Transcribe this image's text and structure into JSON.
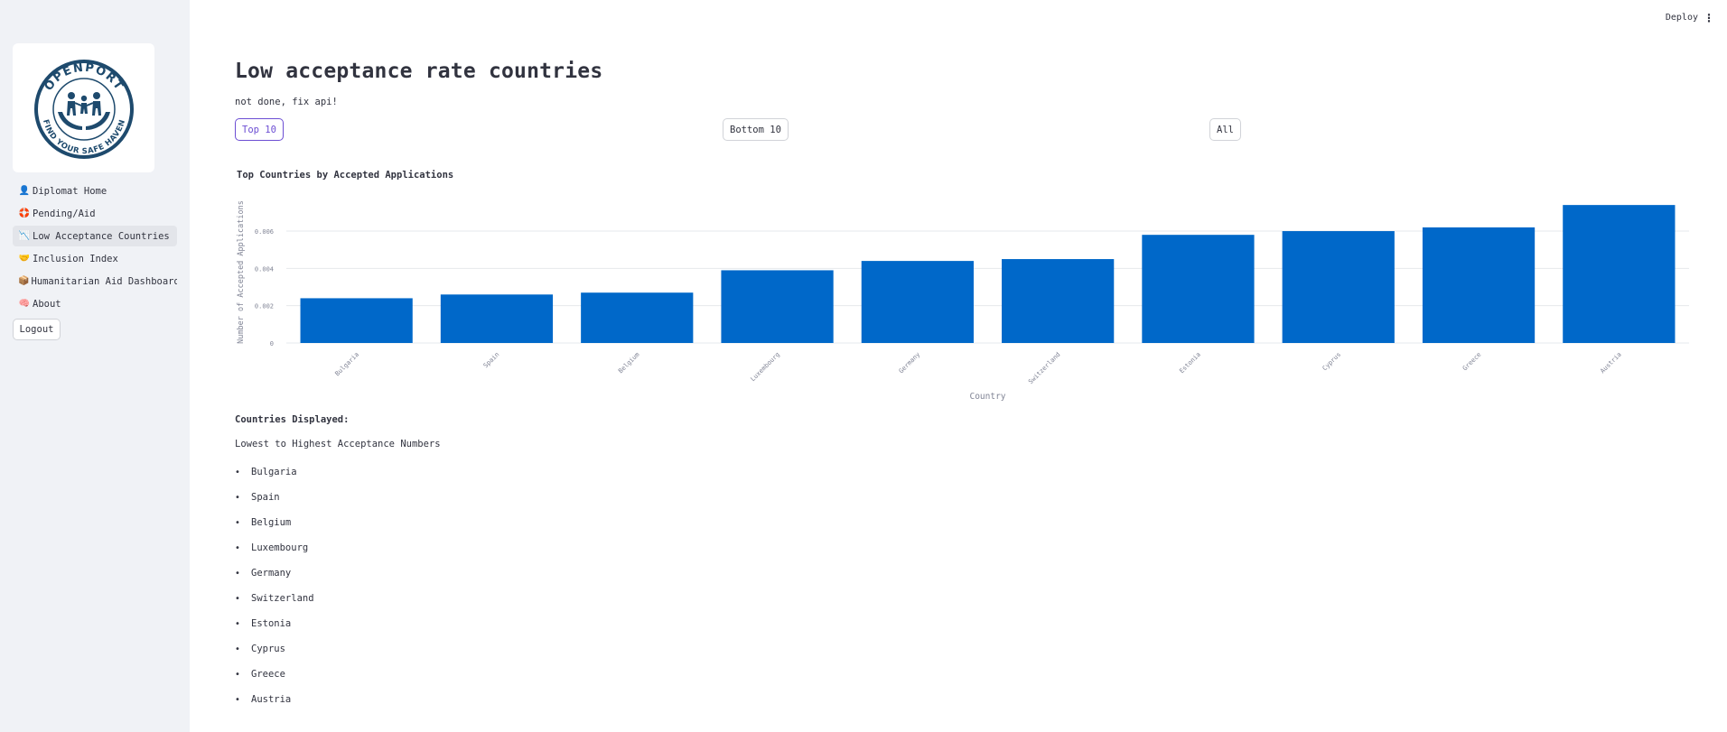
{
  "header": {
    "deploy_label": "Deploy",
    "menu_icon": "⋮"
  },
  "sidebar": {
    "logo": {
      "text_top": "OPENPORT",
      "text_bottom": "FIND YOUR SAFE HAVEN",
      "color": "#1e4a6d"
    },
    "items": [
      {
        "label": "Diplomat Home",
        "icon": "person-icon",
        "glyph": "👤"
      },
      {
        "label": "Pending/Aid",
        "icon": "life-ring-icon",
        "glyph": "🛟"
      },
      {
        "label": "Low Acceptance Countries",
        "icon": "chart-decreasing-icon",
        "glyph": "📉",
        "active": true
      },
      {
        "label": "Inclusion Index",
        "icon": "handshake-icon",
        "glyph": "🤝"
      },
      {
        "label": "Humanitarian Aid Dashboard",
        "icon": "package-icon",
        "glyph": "📦"
      },
      {
        "label": "About",
        "icon": "brain-icon",
        "glyph": "🧠"
      }
    ],
    "logout_label": "Logout"
  },
  "main": {
    "title": "Low acceptance rate countries",
    "subtitle": "not done, fix api!",
    "filters": [
      {
        "label": "Top 10",
        "selected": true
      },
      {
        "label": "Bottom 10",
        "selected": false
      },
      {
        "label": "All",
        "selected": false
      }
    ],
    "list_heading": "Countries Displayed:",
    "list_caption": "Lowest to Highest Acceptance Numbers"
  },
  "chart_data": {
    "type": "bar",
    "title": "Top Countries by Accepted Applications",
    "xlabel": "Country",
    "ylabel": "Number of Accepted Applications",
    "categories": [
      "Bulgaria",
      "Spain",
      "Belgium",
      "Luxembourg",
      "Germany",
      "Switzerland",
      "Estonia",
      "Cyprus",
      "Greece",
      "Austria"
    ],
    "values": [
      0.0024,
      0.0026,
      0.0027,
      0.0039,
      0.0044,
      0.0045,
      0.0058,
      0.006,
      0.0062,
      0.0074
    ],
    "yticks": [
      "0",
      "0.002",
      "0.004",
      "0.006"
    ],
    "ylim": [
      0,
      0.0076
    ],
    "bar_color": "#0068c9",
    "grid": true
  }
}
